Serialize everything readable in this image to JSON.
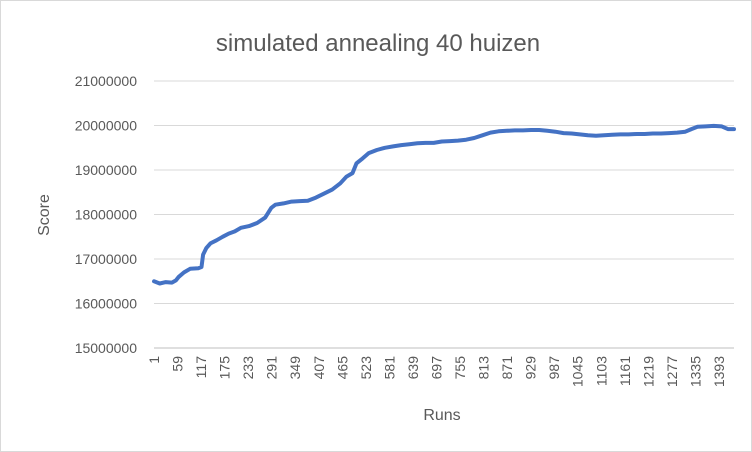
{
  "chart_data": {
    "type": "line",
    "title": "simulated annealing 40 huizen",
    "xlabel": "Runs",
    "ylabel": "Score",
    "ylim": [
      15000000,
      21000000
    ],
    "y_ticks": [
      "15000000",
      "16000000",
      "17000000",
      "18000000",
      "19000000",
      "20000000",
      "21000000"
    ],
    "x_tick_labels": [
      "1",
      "59",
      "117",
      "175",
      "233",
      "291",
      "349",
      "407",
      "465",
      "523",
      "581",
      "639",
      "697",
      "755",
      "813",
      "871",
      "929",
      "987",
      "1045",
      "1103",
      "1161",
      "1219",
      "1277",
      "1335",
      "1393"
    ],
    "x_range": [
      1,
      1430
    ],
    "grid": true,
    "legend": "none",
    "series_color": "#4472c4",
    "series": [
      {
        "values": [
          [
            1,
            16500000
          ],
          [
            15,
            16450000
          ],
          [
            30,
            16480000
          ],
          [
            45,
            16470000
          ],
          [
            55,
            16520000
          ],
          [
            62,
            16600000
          ],
          [
            75,
            16700000
          ],
          [
            90,
            16780000
          ],
          [
            110,
            16790000
          ],
          [
            118,
            16820000
          ],
          [
            122,
            17100000
          ],
          [
            130,
            17250000
          ],
          [
            140,
            17350000
          ],
          [
            155,
            17420000
          ],
          [
            170,
            17500000
          ],
          [
            185,
            17570000
          ],
          [
            200,
            17620000
          ],
          [
            215,
            17700000
          ],
          [
            235,
            17740000
          ],
          [
            255,
            17810000
          ],
          [
            275,
            17930000
          ],
          [
            290,
            18150000
          ],
          [
            300,
            18220000
          ],
          [
            320,
            18250000
          ],
          [
            340,
            18290000
          ],
          [
            360,
            18300000
          ],
          [
            380,
            18310000
          ],
          [
            400,
            18380000
          ],
          [
            420,
            18470000
          ],
          [
            440,
            18560000
          ],
          [
            460,
            18700000
          ],
          [
            475,
            18850000
          ],
          [
            490,
            18930000
          ],
          [
            500,
            19150000
          ],
          [
            515,
            19260000
          ],
          [
            530,
            19380000
          ],
          [
            550,
            19450000
          ],
          [
            570,
            19500000
          ],
          [
            590,
            19530000
          ],
          [
            610,
            19560000
          ],
          [
            630,
            19580000
          ],
          [
            650,
            19600000
          ],
          [
            670,
            19610000
          ],
          [
            690,
            19610000
          ],
          [
            710,
            19640000
          ],
          [
            730,
            19650000
          ],
          [
            750,
            19660000
          ],
          [
            770,
            19680000
          ],
          [
            790,
            19720000
          ],
          [
            810,
            19780000
          ],
          [
            830,
            19840000
          ],
          [
            850,
            19870000
          ],
          [
            870,
            19880000
          ],
          [
            890,
            19890000
          ],
          [
            910,
            19890000
          ],
          [
            930,
            19900000
          ],
          [
            950,
            19900000
          ],
          [
            970,
            19880000
          ],
          [
            990,
            19860000
          ],
          [
            1010,
            19830000
          ],
          [
            1030,
            19820000
          ],
          [
            1050,
            19800000
          ],
          [
            1070,
            19780000
          ],
          [
            1090,
            19770000
          ],
          [
            1110,
            19780000
          ],
          [
            1130,
            19790000
          ],
          [
            1150,
            19800000
          ],
          [
            1170,
            19800000
          ],
          [
            1190,
            19810000
          ],
          [
            1210,
            19810000
          ],
          [
            1230,
            19820000
          ],
          [
            1250,
            19820000
          ],
          [
            1270,
            19830000
          ],
          [
            1290,
            19840000
          ],
          [
            1310,
            19860000
          ],
          [
            1325,
            19920000
          ],
          [
            1340,
            19970000
          ],
          [
            1360,
            19980000
          ],
          [
            1380,
            19990000
          ],
          [
            1400,
            19980000
          ],
          [
            1415,
            19920000
          ],
          [
            1430,
            19920000
          ]
        ]
      }
    ]
  }
}
